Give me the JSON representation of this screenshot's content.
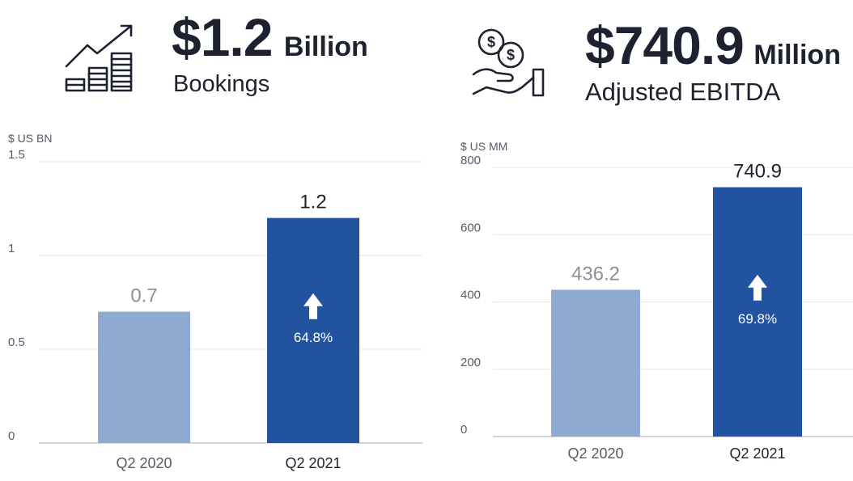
{
  "panels": [
    {
      "headline_value": "$1.2",
      "headline_unit": "Billion",
      "headline_label": "Bookings",
      "icon": "growth-chart-icon"
    },
    {
      "headline_value": "$740.9",
      "headline_unit": "Million",
      "headline_label": "Adjusted EBITDA",
      "icon": "coins-hand-icon"
    }
  ],
  "chart_data": [
    {
      "type": "bar",
      "title": "Bookings",
      "ylabel": "$ US BN",
      "categories": [
        "Q2 2020",
        "Q2 2021"
      ],
      "values": [
        0.7,
        1.2
      ],
      "value_labels": [
        "0.7",
        "1.2"
      ],
      "yticks": [
        0,
        0.5,
        1,
        1.5
      ],
      "ytick_labels": [
        "0",
        "0.5",
        "1",
        "1.5"
      ],
      "ylim": [
        0,
        1.5
      ],
      "growth_label": "64.8%",
      "colors": [
        "#8faad1",
        "#2153a1"
      ],
      "value_label_colors": [
        "#8a8f99",
        "#1e2230"
      ]
    },
    {
      "type": "bar",
      "title": "Adjusted EBITDA",
      "ylabel": "$ US MM",
      "categories": [
        "Q2 2020",
        "Q2 2021"
      ],
      "values": [
        436.2,
        740.9
      ],
      "value_labels": [
        "436.2",
        "740.9"
      ],
      "yticks": [
        0,
        200,
        400,
        600,
        800
      ],
      "ytick_labels": [
        "0",
        "200",
        "400",
        "600",
        "800"
      ],
      "ylim": [
        0,
        800
      ],
      "growth_label": "69.8%",
      "colors": [
        "#8faad1",
        "#2153a1"
      ],
      "value_label_colors": [
        "#8a8f99",
        "#1e2230"
      ]
    }
  ]
}
